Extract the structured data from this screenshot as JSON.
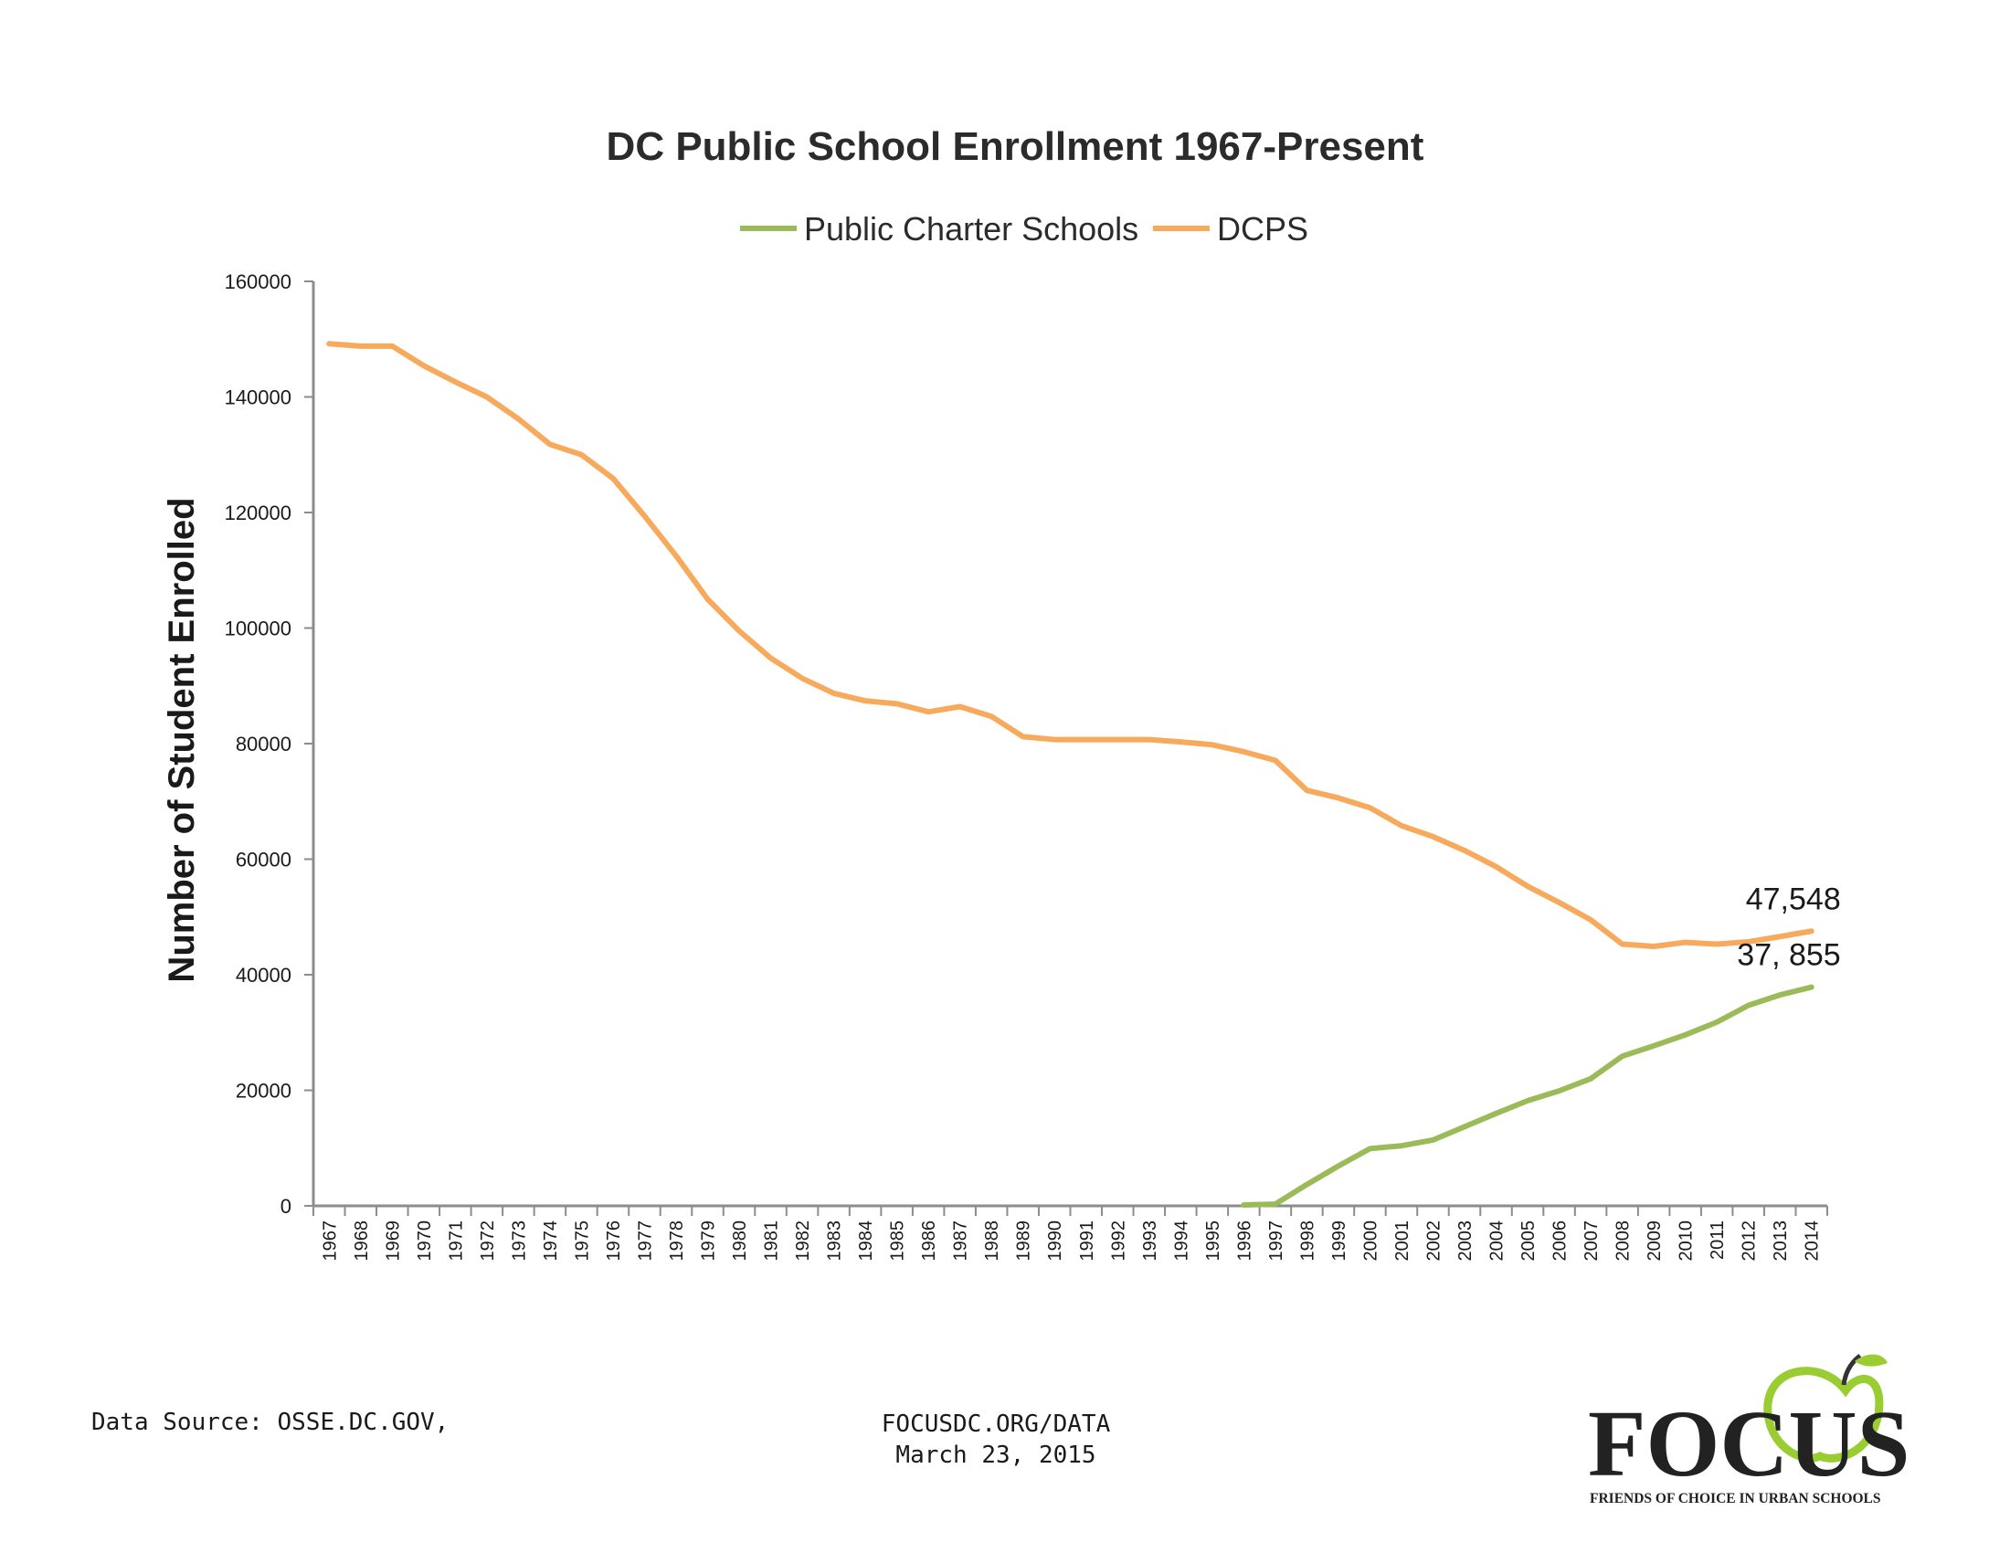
{
  "chart_data": {
    "type": "line",
    "title": "DC Public School Enrollment 1967-Present",
    "ylabel": "Number of Student Enrolled",
    "xlabel": "",
    "ylim": [
      0,
      160000
    ],
    "yticks": [
      0,
      20000,
      40000,
      60000,
      80000,
      100000,
      120000,
      140000,
      160000
    ],
    "ytick_labels": [
      "0",
      "20000",
      "40000",
      "60000",
      "80000",
      "100000",
      "120000",
      "140000",
      "160000"
    ],
    "x": [
      "1967",
      "1968",
      "1969",
      "1970",
      "1971",
      "1972",
      "1973",
      "1974",
      "1975",
      "1976",
      "1977",
      "1978",
      "1979",
      "1980",
      "1981",
      "1982",
      "1983",
      "1984",
      "1985",
      "1986",
      "1987",
      "1988",
      "1989",
      "1990",
      "1991",
      "1992",
      "1993",
      "1994",
      "1995",
      "1996",
      "1997",
      "1998",
      "1999",
      "2000",
      "2001",
      "2002",
      "2003",
      "2004",
      "2005",
      "2006",
      "2007",
      "2008",
      "2009",
      "2010",
      "2011",
      "2012",
      "2013",
      "2014"
    ],
    "grid": false,
    "legend_position": "top",
    "series": [
      {
        "name": "Public Charter Schools",
        "color": "#9bbb59",
        "values": [
          null,
          null,
          null,
          null,
          null,
          null,
          null,
          null,
          null,
          null,
          null,
          null,
          null,
          null,
          null,
          null,
          null,
          null,
          null,
          null,
          null,
          null,
          null,
          null,
          null,
          null,
          null,
          null,
          null,
          160,
          300,
          3700,
          6900,
          9900,
          10400,
          11400,
          13700,
          16000,
          18200,
          19900,
          22000,
          25900,
          27700,
          29600,
          31800,
          34700,
          36500,
          37855
        ],
        "end_label": "37, 855"
      },
      {
        "name": "DCPS",
        "color": "#f7a95c",
        "values": [
          149200,
          148800,
          148800,
          145400,
          142600,
          140000,
          136200,
          131800,
          130000,
          125900,
          119400,
          112500,
          105000,
          99500,
          94800,
          91300,
          88700,
          87400,
          86900,
          85500,
          86400,
          84700,
          81200,
          80700,
          80700,
          80700,
          80700,
          80300,
          79800,
          78600,
          77100,
          71900,
          70600,
          68900,
          65800,
          63900,
          61500,
          58700,
          55300,
          52500,
          49500,
          45300,
          44900,
          45600,
          45300,
          45700,
          46600,
          47548
        ],
        "end_label": "47,548"
      }
    ]
  },
  "footer": {
    "source": "Data Source: OSSE.DC.GOV,",
    "site": "FOCUSDC.ORG/DATA",
    "date": "March 23, 2015"
  },
  "logo": {
    "word": "FOCUS",
    "tagline": "FRIENDS OF CHOICE IN URBAN SCHOOLS",
    "word_color": "#222222",
    "apple_color": "#9acd32"
  }
}
